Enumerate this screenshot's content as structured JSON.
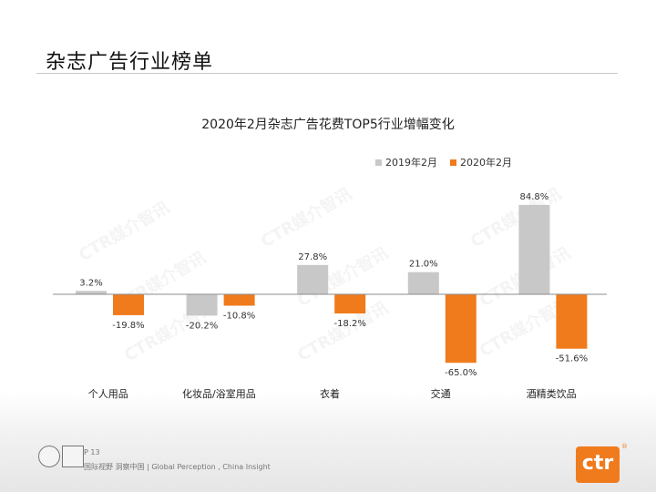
{
  "header": {
    "title": "杂志广告行业榜单"
  },
  "watermark": "CTR媒介智讯",
  "footer": {
    "page": "P 13",
    "tagline": "国际视野 洞察中国 | Global Perception , China Insight",
    "logo": "ctr",
    "logo_mark": "®"
  },
  "colors": {
    "s2019": "#c8c8c8",
    "s2020": "#f07b1c",
    "baseline": "#8c8c8c"
  },
  "chart_data": {
    "type": "bar",
    "title": "2020年2月杂志广告花费TOP5行业增幅变化",
    "xlabel": "",
    "ylabel": "",
    "grid": false,
    "legend_position": "top-right",
    "categories": [
      "个人用品",
      "化妆品/浴室用品",
      "衣着",
      "交通",
      "酒精类饮品"
    ],
    "series": [
      {
        "name": "2019年2月",
        "values": [
          3.2,
          -20.2,
          27.8,
          21.0,
          84.8
        ],
        "labels": [
          "3.2%",
          "-20.2%",
          "27.8%",
          "21.0%",
          "84.8%"
        ]
      },
      {
        "name": "2020年2月",
        "values": [
          -19.8,
          -10.8,
          -18.2,
          -65.0,
          -51.6
        ],
        "labels": [
          "-19.8%",
          "-10.8%",
          "-18.2%",
          "-65.0%",
          "-51.6%"
        ]
      }
    ]
  }
}
